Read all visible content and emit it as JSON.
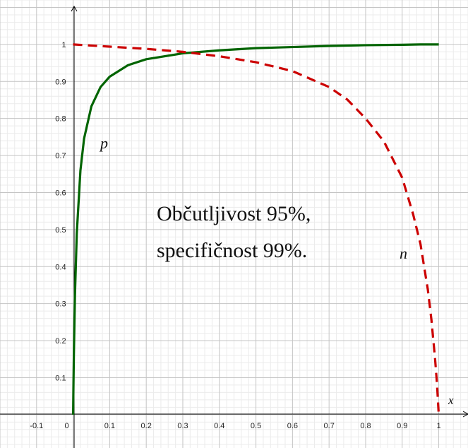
{
  "chart_data": {
    "type": "line",
    "title": "",
    "xlabel": "x",
    "ylabel": "",
    "xlim": [
      -0.2,
      1.08
    ],
    "ylim": [
      -0.09,
      1.12
    ],
    "grid": true,
    "x_ticks": [
      "-0.1",
      "0",
      "0.1",
      "0.2",
      "0.3",
      "0.4",
      "0.5",
      "0.6",
      "0.7",
      "0.8",
      "0.9",
      "1"
    ],
    "y_ticks": [
      "0.1",
      "0.2",
      "0.3",
      "0.4",
      "0.5",
      "0.6",
      "0.7",
      "0.8",
      "0.9",
      "1"
    ],
    "annotation_lines": [
      "Občutljivost 95%,",
      "specifičnost 99%."
    ],
    "series": [
      {
        "name": "p",
        "color": "#006400",
        "style": "solid",
        "x": [
          0,
          0.001,
          0.002,
          0.005,
          0.01,
          0.02,
          0.03,
          0.05,
          0.075,
          0.1,
          0.15,
          0.2,
          0.3,
          0.4,
          0.5,
          0.6,
          0.7,
          0.8,
          0.9,
          0.95,
          1
        ],
        "y": [
          0,
          0.087,
          0.16,
          0.323,
          0.49,
          0.66,
          0.746,
          0.833,
          0.885,
          0.913,
          0.944,
          0.96,
          0.976,
          0.984,
          0.99,
          0.993,
          0.996,
          0.998,
          0.999,
          1.0,
          1.0
        ]
      },
      {
        "name": "n",
        "color": "#cc0000",
        "style": "dashed",
        "x": [
          0,
          0.1,
          0.2,
          0.3,
          0.4,
          0.5,
          0.6,
          0.7,
          0.75,
          0.8,
          0.85,
          0.9,
          0.93,
          0.95,
          0.97,
          0.98,
          0.99,
          0.995,
          1
        ],
        "y": [
          1.0,
          0.994,
          0.988,
          0.98,
          0.968,
          0.952,
          0.928,
          0.885,
          0.851,
          0.8,
          0.738,
          0.64,
          0.541,
          0.461,
          0.339,
          0.256,
          0.15,
          0.086,
          0.0
        ]
      }
    ]
  }
}
